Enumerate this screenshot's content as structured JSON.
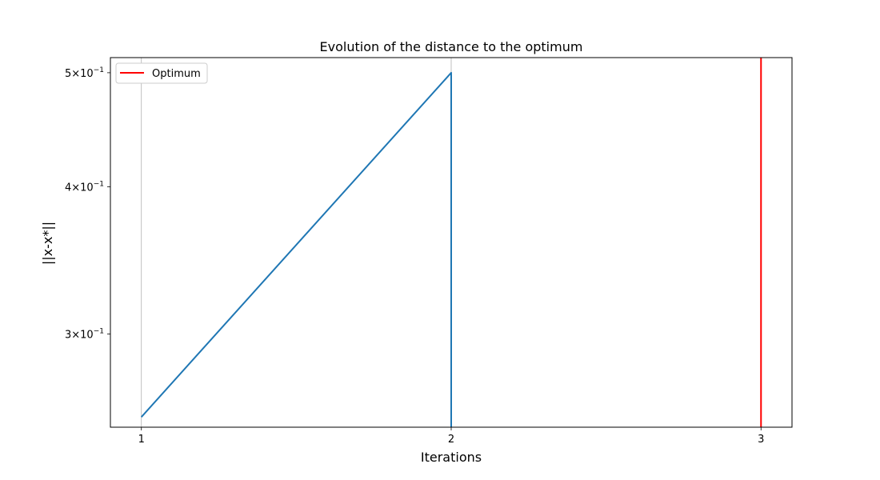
{
  "chart_data": {
    "type": "line",
    "title": "Evolution of the distance to the optimum",
    "xlabel": "Iterations",
    "ylabel": "||x-x*||",
    "yscale": "log",
    "xlim": [
      0.9,
      3.1
    ],
    "ylim": [
      0.25,
      0.515
    ],
    "grid": "vertical gridlines at x ticks",
    "legend_position": "upper-left",
    "x_ticks": [
      {
        "value": 1,
        "label": "1"
      },
      {
        "value": 2,
        "label": "2"
      },
      {
        "value": 3,
        "label": "3"
      }
    ],
    "y_ticks": [
      {
        "value": 0.5,
        "base": "5×10",
        "exp": "−1"
      },
      {
        "value": 0.4,
        "base": "4×10",
        "exp": "−1"
      },
      {
        "value": 0.3,
        "base": "3×10",
        "exp": "−1"
      }
    ],
    "series": [
      {
        "color": "#1f77b4",
        "x": [
          1,
          2,
          2
        ],
        "y": [
          0.255,
          0.5,
          0.25
        ]
      }
    ],
    "vlines": [
      {
        "name": "Optimum",
        "x": 3,
        "color": "#ff0000"
      }
    ],
    "legend": [
      {
        "label": "Optimum",
        "color": "#ff0000"
      }
    ]
  }
}
